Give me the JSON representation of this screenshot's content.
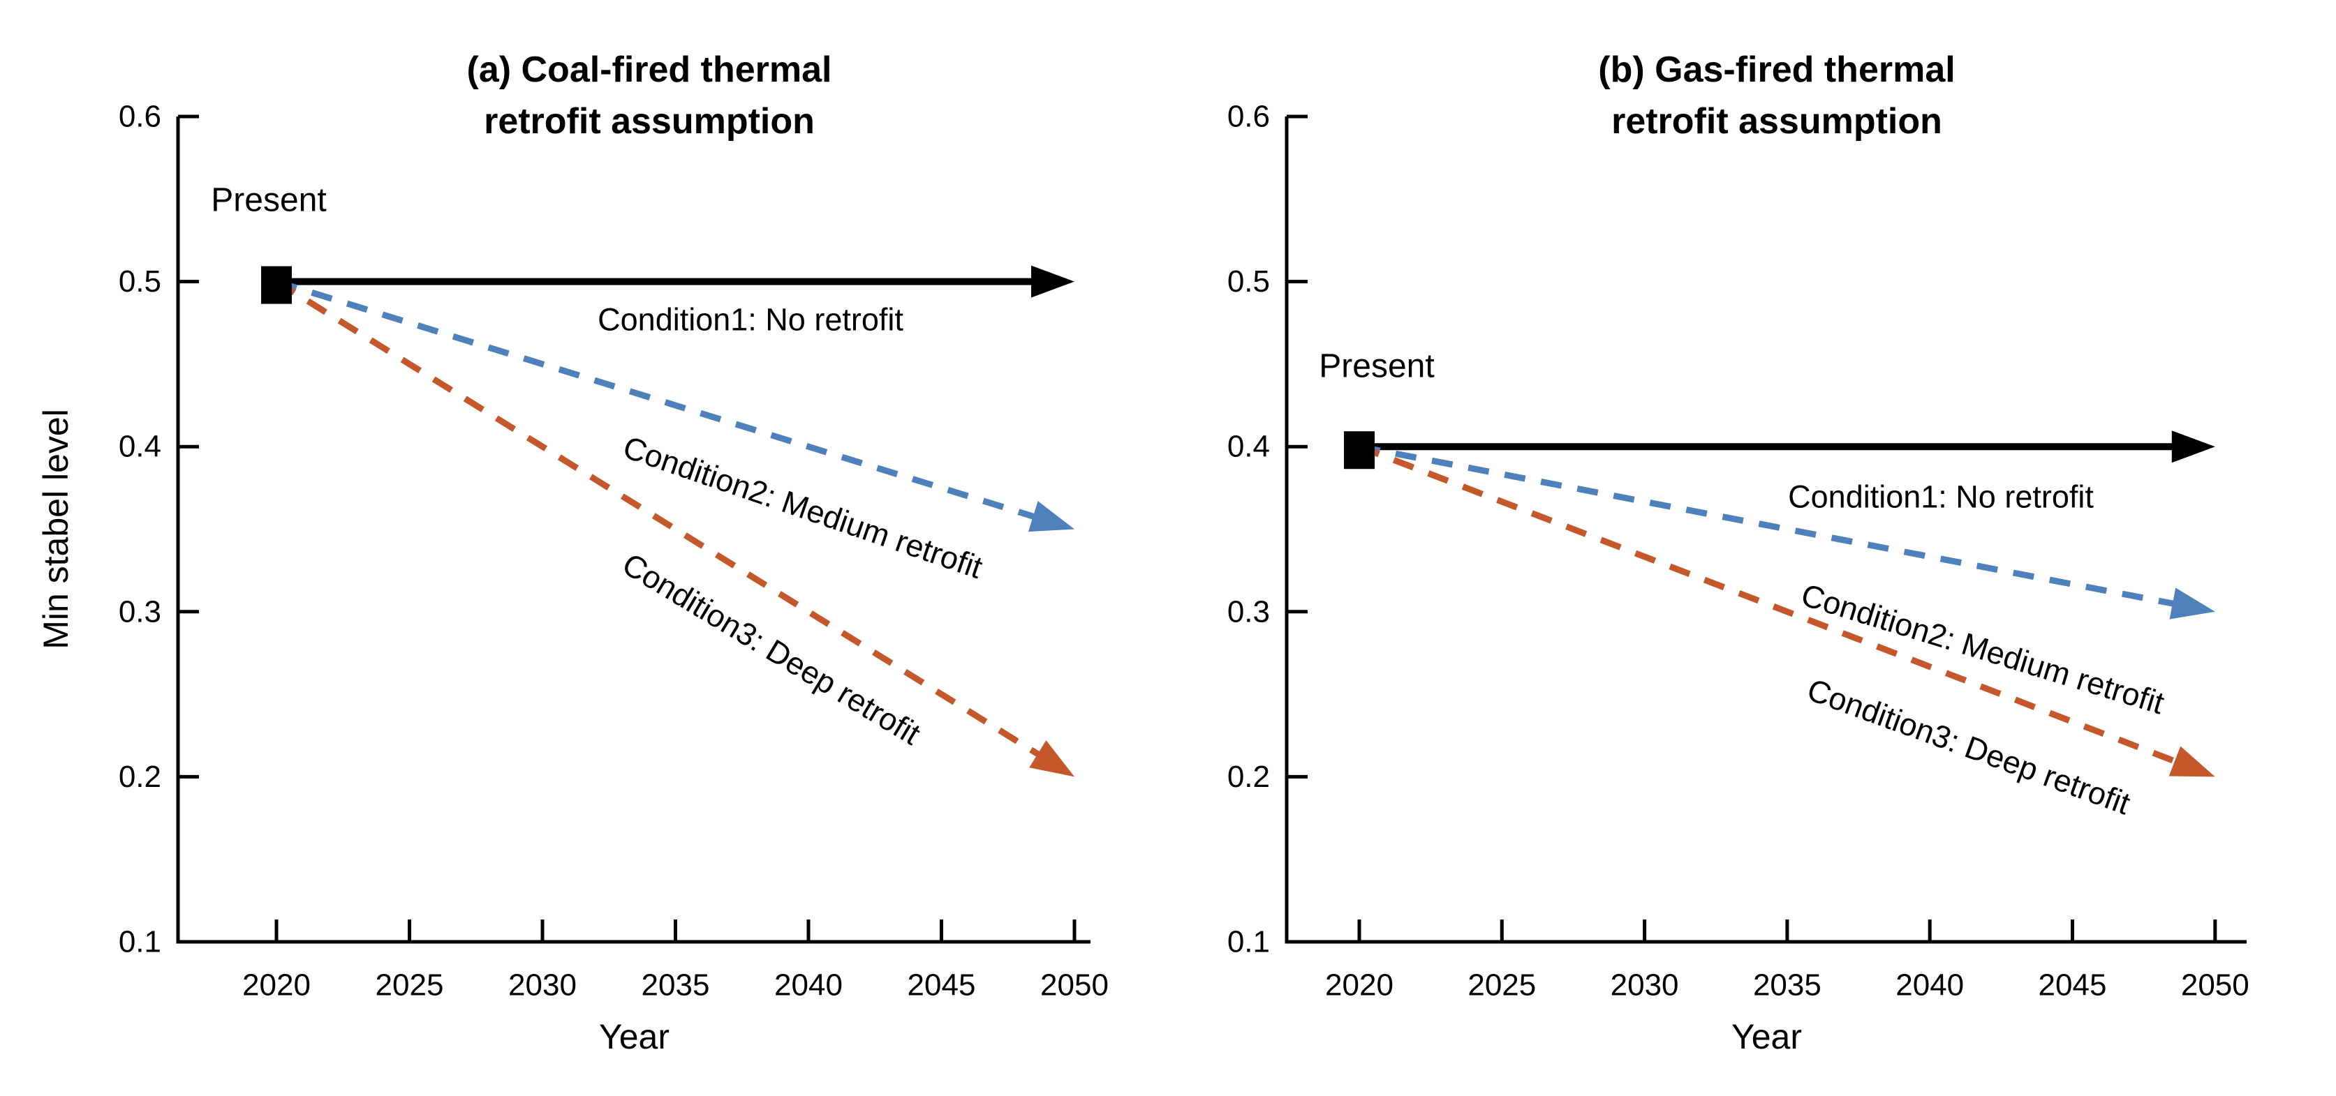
{
  "figure": {
    "background": "#ffffff",
    "black": "#000000"
  },
  "chart_data": [
    {
      "type": "line",
      "panel_id": "a",
      "title": "(a) Coal-fired thermal retrofit assumption",
      "title_lines": [
        "(a) Coal-fired thermal",
        "retrofit assumption"
      ],
      "xlabel": "Year",
      "ylabel": "Min stabel level",
      "xlim": [
        2020,
        2050
      ],
      "ylim": [
        0.1,
        0.6
      ],
      "x_ticks": [
        2020,
        2025,
        2030,
        2035,
        2040,
        2045,
        2050
      ],
      "y_ticks": [
        0.1,
        0.2,
        0.3,
        0.4,
        0.5,
        0.6
      ],
      "grid": false,
      "legend_position": "none",
      "present": {
        "label": "Present",
        "x": 2020,
        "y": 0.5,
        "marker": "black-square"
      },
      "series": [
        {
          "name": "Condition1: No retrofit",
          "style": "solid",
          "color": "#000000",
          "points": [
            [
              2020,
              0.5
            ],
            [
              2050,
              0.5
            ]
          ]
        },
        {
          "name": "Condition2: Medium retrofit",
          "style": "dashed",
          "color": "#4e80bc",
          "points": [
            [
              2020,
              0.5
            ],
            [
              2050,
              0.35
            ]
          ]
        },
        {
          "name": "Condition3: Deep retrofit",
          "style": "dashed",
          "color": "#c4582b",
          "points": [
            [
              2020,
              0.5
            ],
            [
              2050,
              0.2
            ]
          ]
        }
      ]
    },
    {
      "type": "line",
      "panel_id": "b",
      "title": "(b) Gas-fired thermal retrofit assumption",
      "title_lines": [
        "(b) Gas-fired thermal",
        "retrofit assumption"
      ],
      "xlabel": "Year",
      "ylabel": "",
      "xlim": [
        2020,
        2050
      ],
      "ylim": [
        0.1,
        0.6
      ],
      "x_ticks": [
        2020,
        2025,
        2030,
        2035,
        2040,
        2045,
        2050
      ],
      "y_ticks": [
        0.1,
        0.2,
        0.3,
        0.4,
        0.5,
        0.6
      ],
      "grid": false,
      "legend_position": "none",
      "present": {
        "label": "Present",
        "x": 2020,
        "y": 0.4,
        "marker": "black-square"
      },
      "series": [
        {
          "name": "Condition1: No retrofit",
          "style": "solid",
          "color": "#000000",
          "points": [
            [
              2020,
              0.4
            ],
            [
              2050,
              0.4
            ]
          ]
        },
        {
          "name": "Condition2: Medium retrofit",
          "style": "dashed",
          "color": "#4e80bc",
          "points": [
            [
              2020,
              0.4
            ],
            [
              2050,
              0.3
            ]
          ]
        },
        {
          "name": "Condition3: Deep retrofit",
          "style": "dashed",
          "color": "#c4582b",
          "points": [
            [
              2020,
              0.4
            ],
            [
              2050,
              0.2
            ]
          ]
        }
      ]
    }
  ]
}
